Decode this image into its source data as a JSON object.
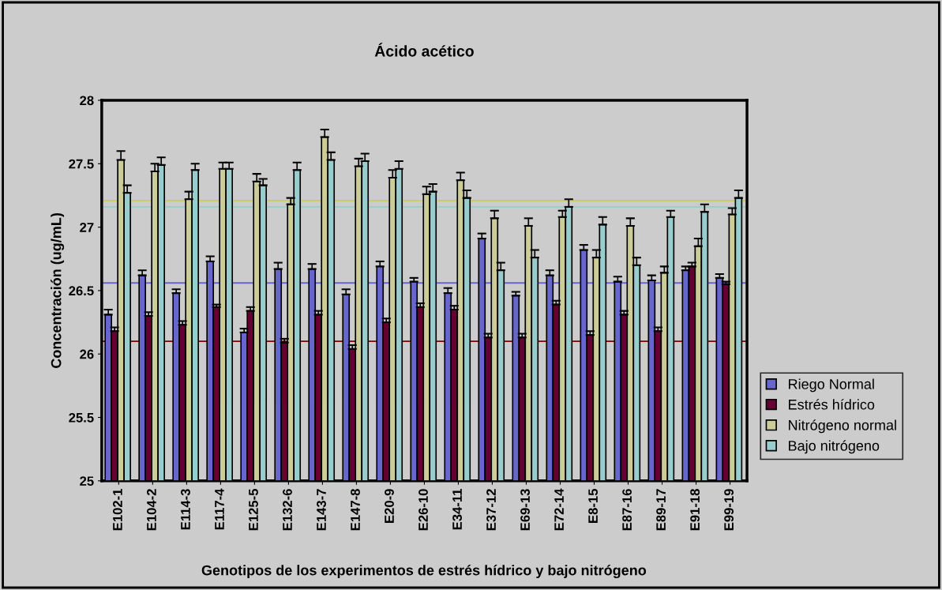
{
  "chart_data": {
    "type": "bar",
    "title": "Ácido acético",
    "xlabel": "Genotipos de los experimentos de estrés hídrico y bajo nitrógeno",
    "ylabel": "Concentración (ug/mL)",
    "categories": [
      "E102-1",
      "E104-2",
      "E114-3",
      "E117-4",
      "E125-5",
      "E132-6",
      "E143-7",
      "E147-8",
      "E20-9",
      "E26-10",
      "E34-11",
      "E37-12",
      "E69-13",
      "E72-14",
      "E8-15",
      "E87-16",
      "E89-17",
      "E91-18",
      "E99-19"
    ],
    "series": [
      {
        "name": "Riego Normal",
        "color": "#6666cc",
        "values": [
          26.31,
          26.62,
          26.48,
          26.73,
          26.17,
          26.67,
          26.67,
          26.47,
          26.69,
          26.57,
          26.48,
          26.91,
          26.46,
          26.62,
          26.82,
          26.57,
          26.58,
          26.66,
          26.6
        ],
        "errors": [
          0.04,
          0.04,
          0.03,
          0.04,
          0.03,
          0.05,
          0.04,
          0.04,
          0.04,
          0.03,
          0.04,
          0.04,
          0.03,
          0.04,
          0.04,
          0.04,
          0.04,
          0.03,
          0.03
        ]
      },
      {
        "name": "Estrés hídrico",
        "color": "#660033",
        "values": [
          26.18,
          26.3,
          26.23,
          26.37,
          26.34,
          26.09,
          26.31,
          26.04,
          26.25,
          26.37,
          26.35,
          26.13,
          26.13,
          26.39,
          26.15,
          26.31,
          26.18,
          26.69,
          26.55
        ],
        "errors": [
          0.03,
          0.03,
          0.03,
          0.02,
          0.03,
          0.03,
          0.03,
          0.03,
          0.03,
          0.03,
          0.03,
          0.03,
          0.03,
          0.03,
          0.03,
          0.03,
          0.03,
          0.03,
          0.02
        ]
      },
      {
        "name": "Nitrógeno normal",
        "color": "#cccc99",
        "values": [
          27.53,
          27.44,
          27.22,
          27.46,
          27.36,
          27.18,
          27.71,
          27.48,
          27.39,
          27.26,
          27.37,
          27.07,
          27.01,
          27.08,
          26.76,
          27.01,
          26.64,
          26.85,
          27.1
        ],
        "errors": [
          0.07,
          0.06,
          0.06,
          0.05,
          0.06,
          0.05,
          0.06,
          0.06,
          0.06,
          0.06,
          0.06,
          0.06,
          0.06,
          0.05,
          0.06,
          0.06,
          0.05,
          0.06,
          0.05
        ]
      },
      {
        "name": "Bajo nitrógeno",
        "color": "#99cccc",
        "values": [
          27.27,
          27.49,
          27.45,
          27.46,
          27.33,
          27.45,
          27.53,
          27.52,
          27.46,
          27.28,
          27.23,
          26.66,
          26.76,
          27.16,
          27.02,
          26.7,
          27.08,
          27.12,
          27.23
        ],
        "errors": [
          0.06,
          0.06,
          0.05,
          0.05,
          0.05,
          0.06,
          0.06,
          0.06,
          0.06,
          0.06,
          0.06,
          0.06,
          0.06,
          0.06,
          0.06,
          0.06,
          0.05,
          0.06,
          0.06
        ]
      }
    ],
    "ylim": [
      25,
      28
    ],
    "yticks": [
      25,
      25.5,
      26,
      26.5,
      27,
      27.5,
      28
    ],
    "ref_lines": [
      {
        "axis": "y",
        "value": 27.21,
        "color": "#cccc55"
      },
      {
        "axis": "y",
        "value": 27.16,
        "color": "#99cccc"
      },
      {
        "axis": "y",
        "value": 26.56,
        "color": "#6666cc"
      },
      {
        "axis": "y",
        "value": 26.1,
        "color": "#800000"
      }
    ],
    "grid": false,
    "legend": "right"
  }
}
